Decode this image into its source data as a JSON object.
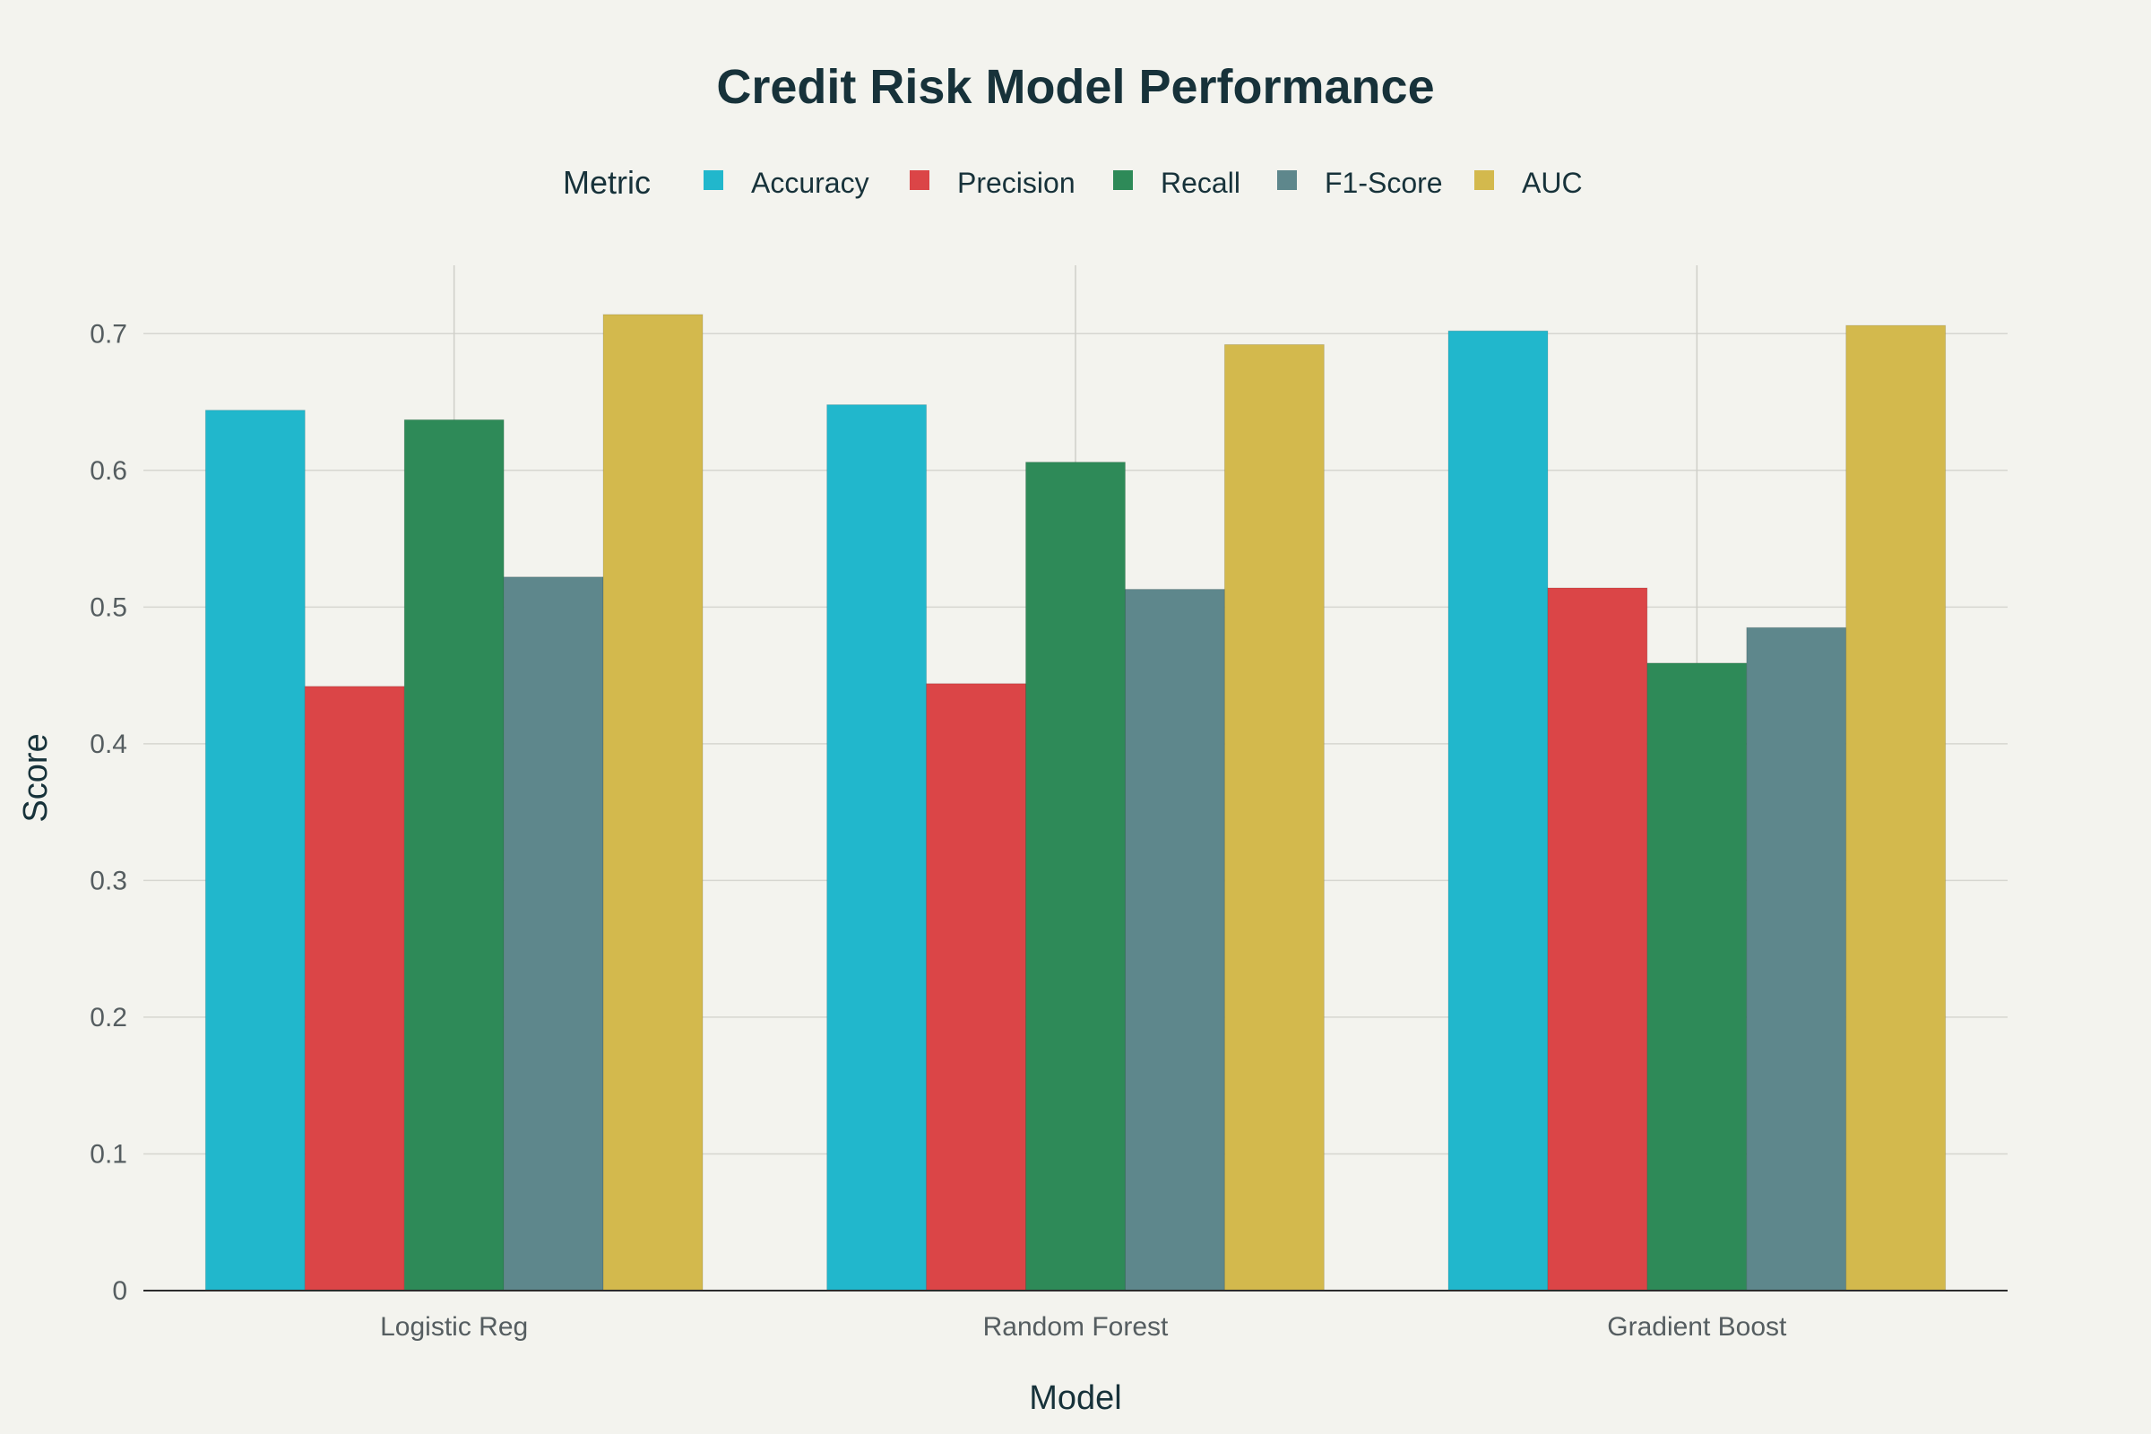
{
  "chart_data": {
    "type": "bar",
    "title": "Credit Risk Model Performance",
    "xlabel": "Model",
    "ylabel": "Score",
    "categories": [
      "Logistic Reg",
      "Random Forest",
      "Gradient Boost"
    ],
    "series": [
      {
        "name": "Accuracy",
        "color": "#21b7cc",
        "values": [
          0.644,
          0.648,
          0.702
        ]
      },
      {
        "name": "Precision",
        "color": "#db4547",
        "values": [
          0.442,
          0.444,
          0.514
        ]
      },
      {
        "name": "Recall",
        "color": "#2e8a58",
        "values": [
          0.637,
          0.606,
          0.459
        ]
      },
      {
        "name": "F1-Score",
        "color": "#5e878c",
        "values": [
          0.522,
          0.513,
          0.485
        ]
      },
      {
        "name": "AUC",
        "color": "#d3b94d",
        "values": [
          0.714,
          0.692,
          0.706
        ]
      }
    ],
    "ylim": [
      0,
      0.75
    ],
    "yticks": [
      0,
      0.1,
      0.2,
      0.3,
      0.4,
      0.5,
      0.6,
      0.7
    ],
    "ytick_labels": [
      "0",
      "0.1",
      "0.2",
      "0.3",
      "0.4",
      "0.5",
      "0.6",
      "0.7"
    ],
    "grid": true,
    "legend": {
      "title": "Metric",
      "position": "top"
    }
  }
}
